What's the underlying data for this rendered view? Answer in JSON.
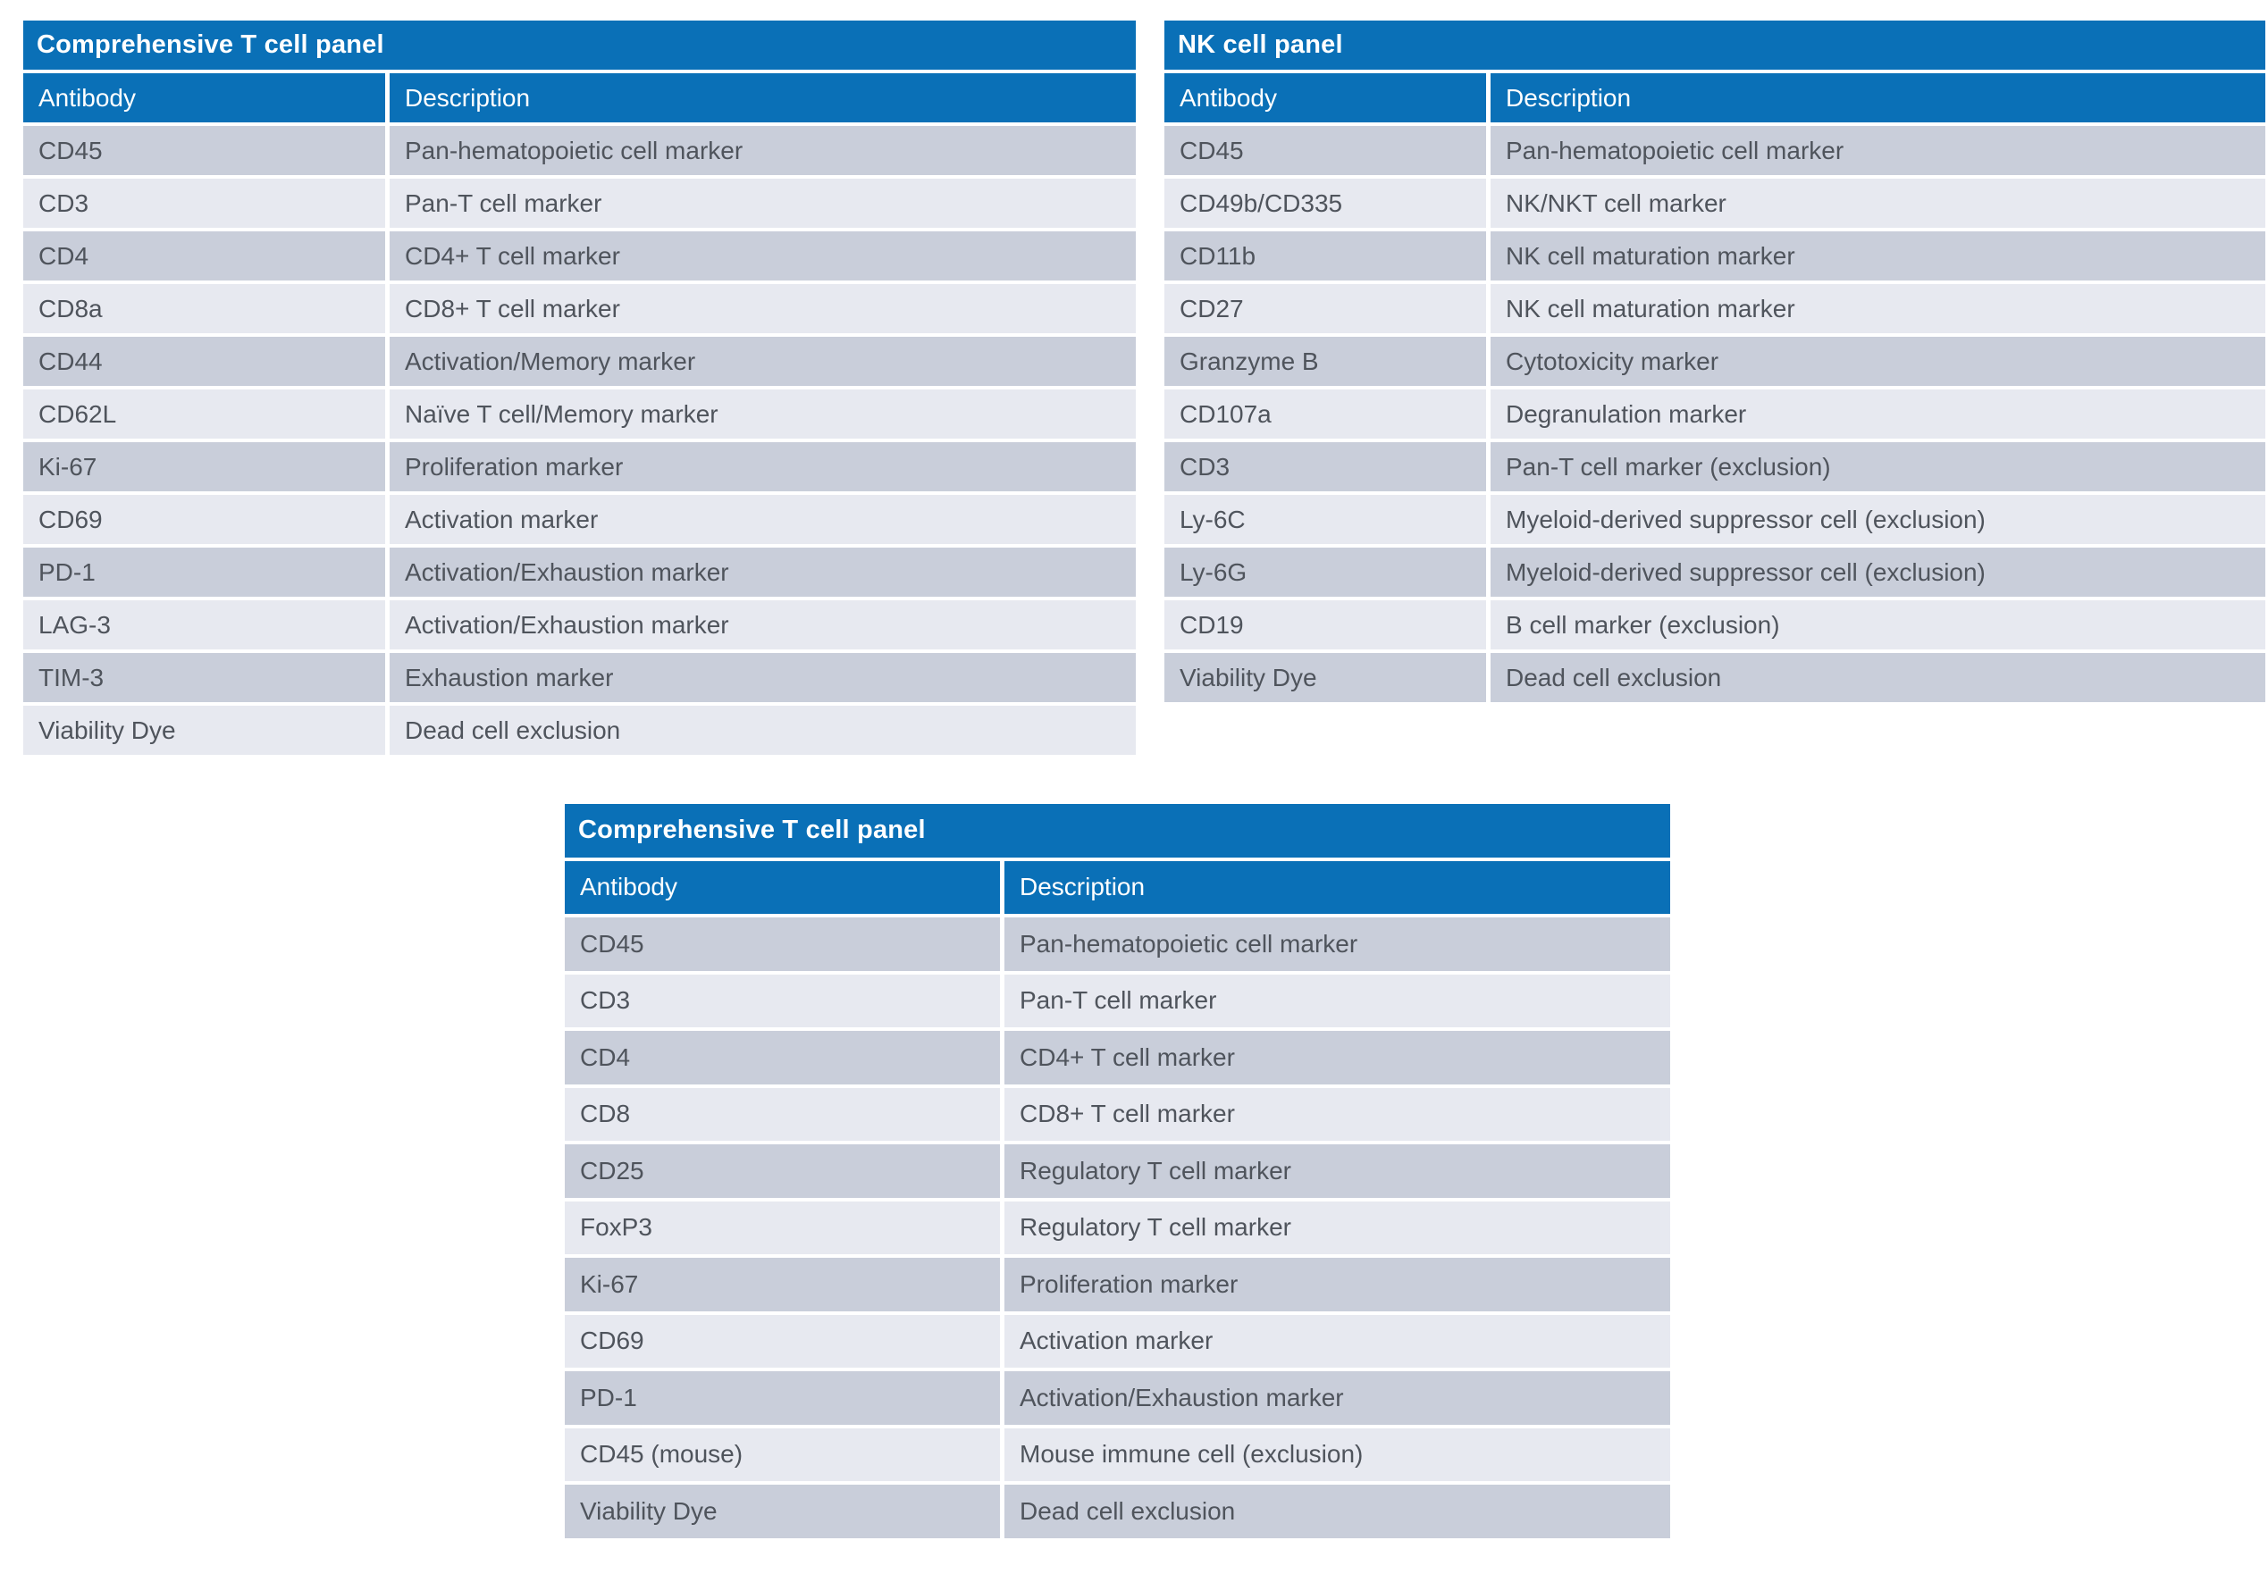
{
  "colors": {
    "header_blue": "#0a70b7",
    "row_dark": "#c9ceda",
    "row_light": "#e7e9f0",
    "cell_text": "#4f545c",
    "header_text": "#ffffff",
    "page_background": "#ffffff"
  },
  "tables": [
    {
      "title": "Comprehensive T cell panel",
      "columns": [
        "Antibody",
        "Description"
      ],
      "rows": [
        {
          "antibody": "CD45",
          "description": "Pan-hematopoietic cell marker"
        },
        {
          "antibody": "CD3",
          "description": "Pan-T cell marker"
        },
        {
          "antibody": "CD4",
          "description": "CD4+ T cell marker"
        },
        {
          "antibody": "CD8a",
          "description": "CD8+ T cell marker"
        },
        {
          "antibody": "CD44",
          "description": "Activation/Memory marker"
        },
        {
          "antibody": "CD62L",
          "description": "Naïve T cell/Memory marker"
        },
        {
          "antibody": "Ki-67",
          "description": "Proliferation marker"
        },
        {
          "antibody": "CD69",
          "description": "Activation marker"
        },
        {
          "antibody": "PD-1",
          "description": "Activation/Exhaustion marker"
        },
        {
          "antibody": "LAG-3",
          "description": "Activation/Exhaustion marker"
        },
        {
          "antibody": "TIM-3",
          "description": "Exhaustion marker"
        },
        {
          "antibody": "Viability Dye",
          "description": "Dead cell exclusion"
        }
      ]
    },
    {
      "title": "NK cell panel",
      "columns": [
        "Antibody",
        "Description"
      ],
      "rows": [
        {
          "antibody": "CD45",
          "description": "Pan-hematopoietic cell marker"
        },
        {
          "antibody": "CD49b/CD335",
          "description": "NK/NKT cell marker"
        },
        {
          "antibody": "CD11b",
          "description": "NK cell maturation marker"
        },
        {
          "antibody": "CD27",
          "description": "NK cell maturation marker"
        },
        {
          "antibody": "Granzyme B",
          "description": "Cytotoxicity marker"
        },
        {
          "antibody": "CD107a",
          "description": "Degranulation marker"
        },
        {
          "antibody": "CD3",
          "description": "Pan-T cell marker (exclusion)"
        },
        {
          "antibody": "Ly-6C",
          "description": "Myeloid-derived suppressor cell (exclusion)"
        },
        {
          "antibody": "Ly-6G",
          "description": "Myeloid-derived suppressor cell (exclusion)"
        },
        {
          "antibody": "CD19",
          "description": "B cell marker (exclusion)"
        },
        {
          "antibody": "Viability Dye",
          "description": "Dead cell exclusion"
        }
      ]
    },
    {
      "title": "Comprehensive T cell panel",
      "columns": [
        "Antibody",
        "Description"
      ],
      "rows": [
        {
          "antibody": "CD45",
          "description": "Pan-hematopoietic cell marker"
        },
        {
          "antibody": "CD3",
          "description": "Pan-T cell marker"
        },
        {
          "antibody": "CD4",
          "description": "CD4+ T cell marker"
        },
        {
          "antibody": "CD8",
          "description": "CD8+ T cell marker"
        },
        {
          "antibody": "CD25",
          "description": "Regulatory T cell marker"
        },
        {
          "antibody": "FoxP3",
          "description": "Regulatory T cell marker"
        },
        {
          "antibody": "Ki-67",
          "description": "Proliferation marker"
        },
        {
          "antibody": "CD69",
          "description": "Activation marker"
        },
        {
          "antibody": "PD-1",
          "description": "Activation/Exhaustion marker"
        },
        {
          "antibody": "CD45 (mouse)",
          "description": "Mouse immune cell (exclusion)"
        },
        {
          "antibody": "Viability Dye",
          "description": "Dead cell exclusion"
        }
      ]
    }
  ]
}
